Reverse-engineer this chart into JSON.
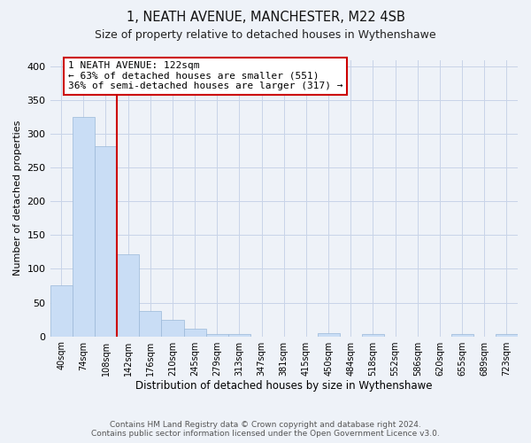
{
  "title": "1, NEATH AVENUE, MANCHESTER, M22 4SB",
  "subtitle": "Size of property relative to detached houses in Wythenshawe",
  "xlabel": "Distribution of detached houses by size in Wythenshawe",
  "ylabel": "Number of detached properties",
  "footer_line1": "Contains HM Land Registry data © Crown copyright and database right 2024.",
  "footer_line2": "Contains public sector information licensed under the Open Government Licence v3.0.",
  "bin_labels": [
    "40sqm",
    "74sqm",
    "108sqm",
    "142sqm",
    "176sqm",
    "210sqm",
    "245sqm",
    "279sqm",
    "313sqm",
    "347sqm",
    "381sqm",
    "415sqm",
    "450sqm",
    "484sqm",
    "518sqm",
    "552sqm",
    "586sqm",
    "620sqm",
    "655sqm",
    "689sqm",
    "723sqm"
  ],
  "bar_values": [
    75,
    325,
    282,
    122,
    38,
    24,
    11,
    4,
    3,
    0,
    0,
    0,
    5,
    0,
    3,
    0,
    0,
    0,
    3,
    0,
    3
  ],
  "bar_color": "#c9ddf5",
  "bar_edgecolor": "#9ab8d8",
  "vline_x": 2.5,
  "vline_color": "#cc0000",
  "annotation_line1": "1 NEATH AVENUE: 122sqm",
  "annotation_line2": "← 63% of detached houses are smaller (551)",
  "annotation_line3": "36% of semi-detached houses are larger (317) →",
  "annotation_box_facecolor": "#ffffff",
  "annotation_box_edgecolor": "#cc0000",
  "ylim": [
    0,
    410
  ],
  "yticks": [
    0,
    50,
    100,
    150,
    200,
    250,
    300,
    350,
    400
  ],
  "grid_color": "#c8d4e8",
  "background_color": "#eef2f8",
  "title_fontsize": 10.5,
  "subtitle_fontsize": 9,
  "ylabel_fontsize": 8,
  "xlabel_fontsize": 8.5,
  "tick_fontsize": 8,
  "xtick_fontsize": 7
}
